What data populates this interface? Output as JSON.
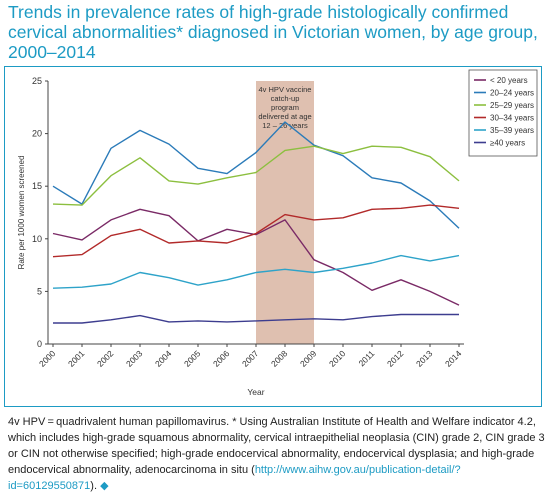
{
  "page": {
    "title": "Trends in prevalence rates of high-grade histologically confirmed cervical abnormalities* diagnosed in Victorian women, by age group, 2000–2014",
    "footnote": {
      "text": "4v HPV = quadrivalent human papillomavirus. * Using Australian Institute of Health and Welfare indicator 4.2, which includes high-grade squamous abnormality, cervical intraepithelial neoplasia (CIN) grade 2, CIN grade 3 or CIN not otherwise specified; high-grade endocervical abnormality, endocervical dysplasia; and high-grade endocervical abnormality, adenocarcinoma in situ (",
      "link": "http://www.aihw.gov.au/publication-detail/?id=60129550871",
      "tail": ").",
      "end_mark": "◆"
    }
  },
  "chart_data": {
    "type": "line",
    "title": "",
    "xlabel": "Year",
    "ylabel": "Rate per 1000 women screened",
    "ylim": [
      0,
      25
    ],
    "yticks": [
      0,
      5,
      10,
      15,
      20,
      25
    ],
    "x": [
      "2000",
      "2001",
      "2002",
      "2003",
      "2004",
      "2005",
      "2006",
      "2007",
      "2008",
      "2009",
      "2010",
      "2011",
      "2012",
      "2013",
      "2014"
    ],
    "grid": false,
    "legend_position": "top-right",
    "annotation": {
      "text_lines": [
        "4v HPV vaccine",
        "catch-up",
        "program",
        "delivered at age",
        "12 – 26 years"
      ],
      "x_start": "2007",
      "x_end": "2009",
      "color": "#dfc0b0"
    },
    "series": [
      {
        "name": "< 20 years",
        "color": "#7a2a66",
        "values": [
          10.5,
          9.9,
          11.8,
          12.8,
          12.2,
          9.8,
          10.9,
          10.4,
          11.8,
          8.0,
          6.8,
          5.1,
          6.1,
          5.0,
          3.7
        ]
      },
      {
        "name": "20–24 years",
        "color": "#2b7bb9",
        "values": [
          15.0,
          13.3,
          18.6,
          20.3,
          19.0,
          16.7,
          16.2,
          18.2,
          21.1,
          18.9,
          17.9,
          15.8,
          15.3,
          13.6,
          11.0
        ]
      },
      {
        "name": "25–29 years",
        "color": "#8cbf3f",
        "values": [
          13.3,
          13.2,
          16.0,
          17.7,
          15.5,
          15.2,
          15.8,
          16.3,
          18.4,
          18.8,
          18.1,
          18.8,
          18.7,
          17.8,
          15.5
        ]
      },
      {
        "name": "30–34 years",
        "color": "#b22a2a",
        "values": [
          8.3,
          8.5,
          10.3,
          10.9,
          9.6,
          9.8,
          9.6,
          10.5,
          12.3,
          11.8,
          12.0,
          12.8,
          12.9,
          13.2,
          12.9
        ]
      },
      {
        "name": "35–39 years",
        "color": "#2ea3c9",
        "values": [
          5.3,
          5.4,
          5.7,
          6.8,
          6.3,
          5.6,
          6.1,
          6.8,
          7.1,
          6.8,
          7.2,
          7.7,
          8.4,
          7.9,
          8.4
        ]
      },
      {
        "name": "≥40 years",
        "color": "#3d3d8f",
        "values": [
          2.0,
          2.0,
          2.3,
          2.7,
          2.1,
          2.2,
          2.1,
          2.2,
          2.3,
          2.4,
          2.3,
          2.6,
          2.8,
          2.8,
          2.8
        ]
      }
    ]
  }
}
